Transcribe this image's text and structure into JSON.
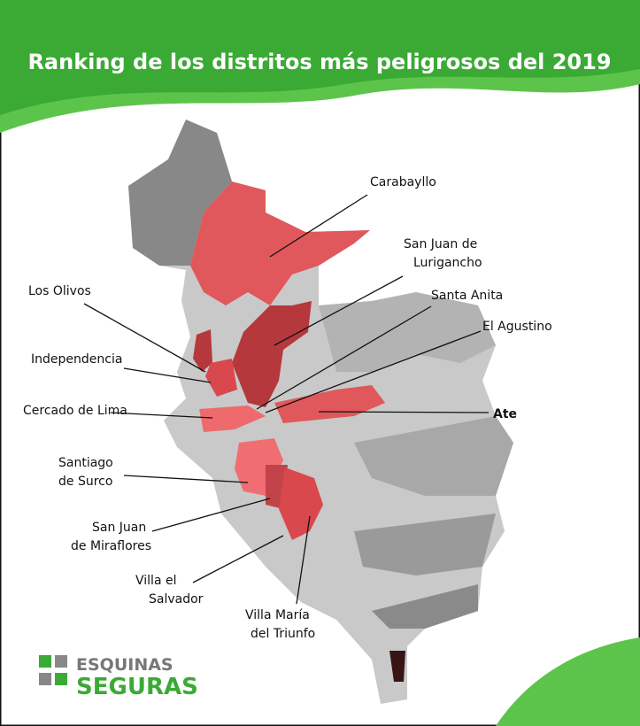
{
  "title": "Ranking de los distritos más peligrosos del 2019",
  "districts": [
    {
      "lines": [
        "Carabayllo"
      ]
    },
    {
      "lines": [
        "San Juan de",
        "Lurigancho"
      ]
    },
    {
      "lines": [
        "Los Olivos"
      ]
    },
    {
      "lines": [
        "Santa Anita"
      ]
    },
    {
      "lines": [
        "El Agustino"
      ]
    },
    {
      "lines": [
        "Independencia"
      ]
    },
    {
      "lines": [
        "Ate"
      ]
    },
    {
      "lines": [
        "Cercado de Lima"
      ]
    },
    {
      "lines": [
        "Santiago",
        "de Surco"
      ]
    },
    {
      "lines": [
        "San Juan",
        "de Miraflores"
      ]
    },
    {
      "lines": [
        "Villa el",
        "Salvador"
      ]
    },
    {
      "lines": [
        "Villa María",
        "del Triunfo"
      ]
    }
  ],
  "logo": {
    "line1": "ESQUINAS",
    "line2": "SEGURAS"
  }
}
